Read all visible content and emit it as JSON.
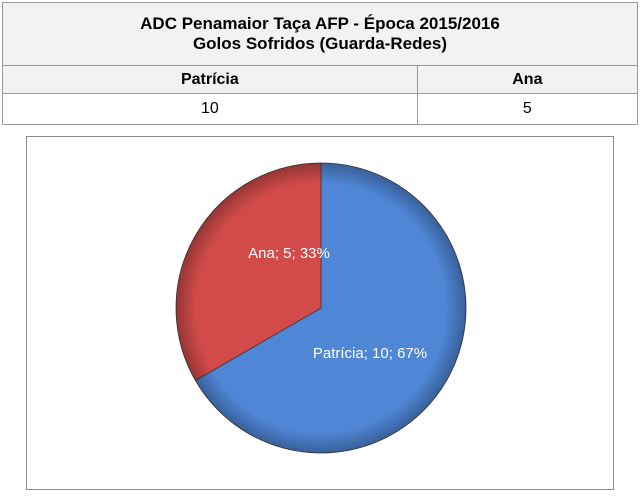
{
  "table": {
    "title_line1": "ADC Penamaior Taça AFP - Época 2015/2016",
    "title_line2": "Golos Sofridos (Guarda-Redes)",
    "headers": [
      "Patrícia",
      "Ana"
    ],
    "values": [
      "10",
      "5"
    ]
  },
  "chart_data": {
    "type": "pie",
    "title": "",
    "categories": [
      "Patrícia",
      "Ana"
    ],
    "values": [
      10,
      5
    ],
    "percentages": [
      67,
      33
    ],
    "colors": [
      "#4f86d6",
      "#d24a4a"
    ],
    "data_labels": [
      "Patrícia; 10; 67%",
      "Ana; 5; 33%"
    ],
    "legend": "none",
    "start_angle_deg": 0,
    "direction": "clockwise",
    "style": "3d-bevel"
  }
}
